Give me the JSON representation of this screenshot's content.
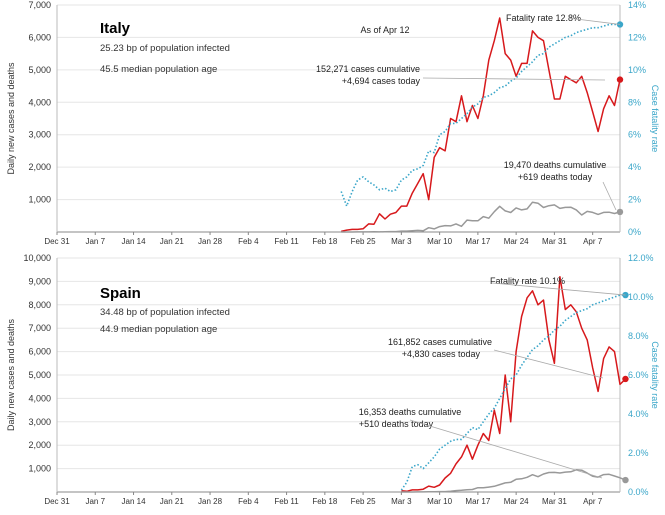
{
  "colors": {
    "cases": "#d7191c",
    "deaths": "#999999",
    "fatality": "#3aa6c9"
  },
  "chart_data": [
    {
      "type": "line",
      "title": "Italy",
      "subtitle_lines": [
        "25.23 bp of population infected",
        "45.5 median population age"
      ],
      "as_of": "As of Apr 12",
      "ylabel": "Daily new cases and deaths",
      "y2label": "Case fatality rate",
      "ylim": [
        0,
        7000
      ],
      "y2lim": [
        0,
        14
      ],
      "yticks": [
        1000,
        2000,
        3000,
        4000,
        5000,
        6000,
        7000
      ],
      "ytick_labels": [
        "1,000",
        "2,000",
        "3,000",
        "4,000",
        "5,000",
        "6,000",
        "7,000"
      ],
      "y2ticks": [
        0,
        2,
        4,
        6,
        8,
        10,
        12,
        14
      ],
      "y2tick_labels": [
        "0%",
        "2%",
        "4%",
        "6%",
        "8%",
        "10%",
        "12%",
        "14%"
      ],
      "x_start": "Dec 31",
      "x_end": "Apr 12",
      "xticks": [
        "Dec 31",
        "Jan 7",
        "Jan 14",
        "Jan 21",
        "Jan 28",
        "Feb 4",
        "Feb 11",
        "Feb 18",
        "Feb 25",
        "Mar 3",
        "Mar 10",
        "Mar 17",
        "Mar 24",
        "Mar 31",
        "Apr 7"
      ],
      "annotations": {
        "fatality": "Fatality rate 12.8%",
        "cases": [
          "152,271 cases cumulative",
          "+4,694 cases today"
        ],
        "deaths": [
          "19,470 deaths cumulative",
          "+619 deaths today"
        ]
      },
      "series": [
        {
          "name": "Daily new cases",
          "color": "#d7191c",
          "axis": "left",
          "start": "Feb 21",
          "values": [
            20,
            60,
            80,
            80,
            100,
            250,
            240,
            560,
            400,
            550,
            600,
            800,
            800,
            1200,
            1500,
            1800,
            1000,
            2300,
            2600,
            2500,
            3500,
            3400,
            4200,
            3400,
            3900,
            3500,
            4200,
            5300,
            5900,
            6600,
            5500,
            5300,
            4800,
            5200,
            5200,
            6200,
            6000,
            5900,
            5000,
            4100,
            4100,
            4800,
            4700,
            4600,
            4800,
            4300,
            3700,
            3100,
            3800,
            4200,
            3900,
            4700
          ]
        },
        {
          "name": "Daily new deaths",
          "color": "#999999",
          "axis": "left",
          "start": "Feb 21",
          "values": [
            1,
            1,
            1,
            3,
            2,
            2,
            5,
            4,
            8,
            12,
            11,
            27,
            28,
            41,
            49,
            36,
            133,
            97,
            168,
            196,
            189,
            250,
            175,
            368,
            349,
            345,
            475,
            427,
            627,
            793,
            651,
            601,
            743,
            683,
            712,
            919,
            889,
            756,
            812,
            837,
            727,
            760,
            766,
            681,
            525,
            636,
            604,
            542,
            604,
            610,
            570,
            619
          ]
        },
        {
          "name": "Case fatality rate",
          "color": "#3aa6c9",
          "axis": "right",
          "style": "dotted",
          "start": "Feb 21",
          "values": [
            2.5,
            1.6,
            2.5,
            3.2,
            3.4,
            3.1,
            2.9,
            2.6,
            2.7,
            2.5,
            2.6,
            3.2,
            3.4,
            3.8,
            3.9,
            4.1,
            5.0,
            4.9,
            6.0,
            6.2,
            6.7,
            6.7,
            7.0,
            7.3,
            7.7,
            7.9,
            8.3,
            8.4,
            8.6,
            8.9,
            9.0,
            9.3,
            9.5,
            9.9,
            10.2,
            10.5,
            10.9,
            11.0,
            11.4,
            11.6,
            11.8,
            12.0,
            12.1,
            12.3,
            12.4,
            12.5,
            12.6,
            12.6,
            12.7,
            12.8,
            12.8,
            12.8
          ]
        }
      ]
    },
    {
      "type": "line",
      "title": "Spain",
      "subtitle_lines": [
        "34.48 bp of population infected",
        "44.9 median population age"
      ],
      "ylabel": "Daily new cases and deaths",
      "y2label": "Case fatality rate",
      "ylim": [
        0,
        10000
      ],
      "y2lim": [
        0,
        12
      ],
      "yticks": [
        1000,
        2000,
        3000,
        4000,
        5000,
        6000,
        7000,
        8000,
        9000,
        10000
      ],
      "ytick_labels": [
        "1,000",
        "2,000",
        "3,000",
        "4,000",
        "5,000",
        "6,000",
        "7,000",
        "8,000",
        "9,000",
        "10,000"
      ],
      "y2ticks": [
        0,
        2,
        4,
        6,
        8,
        10,
        12
      ],
      "y2tick_labels": [
        "0.0%",
        "2.0%",
        "4.0%",
        "6.0%",
        "8.0%",
        "10.0%",
        "12.0%"
      ],
      "x_start": "Dec 31",
      "x_end": "Apr 12",
      "xticks": [
        "Dec 31",
        "Jan 7",
        "Jan 14",
        "Jan 21",
        "Jan 28",
        "Feb 4",
        "Feb 11",
        "Feb 18",
        "Feb 25",
        "Mar 3",
        "Mar 10",
        "Mar 17",
        "Mar 24",
        "Mar 31",
        "Apr 7"
      ],
      "annotations": {
        "fatality": "Fatality rate 10.1%",
        "cases": [
          "161,852 cases cumulative",
          "+4,830 cases today"
        ],
        "deaths": [
          "16,353 deaths cumulative",
          "+510 deaths today"
        ]
      },
      "series": [
        {
          "name": "Daily new cases",
          "color": "#d7191c",
          "axis": "left",
          "start": "Mar 3",
          "values": [
            50,
            30,
            90,
            90,
            120,
            250,
            200,
            300,
            600,
            800,
            1200,
            1500,
            2000,
            1400,
            2000,
            2500,
            2200,
            3500,
            2500,
            5000,
            3000,
            6000,
            7500,
            8300,
            8600,
            8000,
            8200,
            6500,
            5500,
            9200,
            7800,
            8000,
            7700,
            7000,
            6500,
            5300,
            4300,
            5700,
            6200,
            6000,
            4600,
            4830
          ]
        },
        {
          "name": "Daily new deaths",
          "color": "#999999",
          "axis": "left",
          "start": "Mar 3",
          "values": [
            1,
            1,
            2,
            3,
            5,
            10,
            7,
            18,
            18,
            31,
            61,
            72,
            98,
            108,
            182,
            179,
            209,
            243,
            317,
            387,
            415,
            542,
            565,
            627,
            738,
            655,
            769,
            832,
            838,
            812,
            849,
            864,
            950,
            932,
            809,
            674,
            637,
            743,
            757,
            683,
            605,
            510
          ]
        },
        {
          "name": "Case fatality rate",
          "color": "#3aa6c9",
          "axis": "right",
          "style": "dotted",
          "start": "Mar 3",
          "values": [
            0.1,
            0.5,
            1.3,
            1.4,
            1.2,
            1.5,
            1.8,
            2.2,
            2.4,
            2.6,
            2.7,
            2.7,
            3.0,
            3.3,
            3.2,
            3.6,
            4.0,
            4.3,
            4.8,
            5.3,
            5.8,
            6.0,
            6.5,
            6.9,
            7.3,
            7.5,
            7.8,
            8.0,
            8.3,
            8.5,
            8.8,
            9.0,
            9.2,
            9.3,
            9.4,
            9.6,
            9.7,
            9.8,
            9.9,
            10.0,
            10.1,
            10.1
          ]
        }
      ]
    }
  ]
}
